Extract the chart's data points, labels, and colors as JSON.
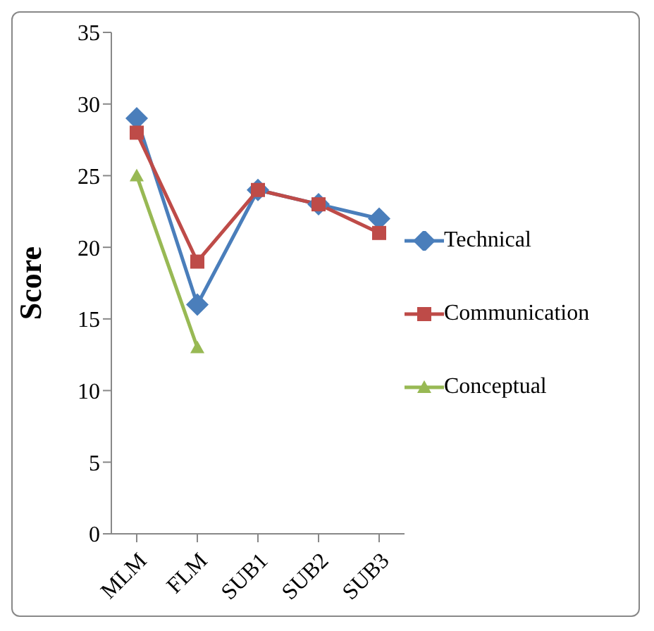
{
  "chart_data": {
    "type": "line",
    "ylabel": "Score",
    "categories": [
      "MLM",
      "FLM",
      "SUB1",
      "SUB2",
      "SUB3"
    ],
    "series": [
      {
        "name": "Technical",
        "color": "#4a7ebb",
        "marker": "diamond",
        "values": [
          29,
          16,
          24,
          23,
          22
        ]
      },
      {
        "name": "Communication",
        "color": "#be4b48",
        "marker": "square",
        "values": [
          28,
          19,
          24,
          23,
          21
        ]
      },
      {
        "name": "Conceptual",
        "color": "#98b954",
        "marker": "triangle",
        "values": [
          25,
          13,
          null,
          null,
          null
        ]
      }
    ],
    "ylim": [
      0,
      35
    ],
    "yticks": [
      0,
      5,
      10,
      15,
      20,
      25,
      30,
      35
    ],
    "grid": false,
    "legend": "right"
  }
}
